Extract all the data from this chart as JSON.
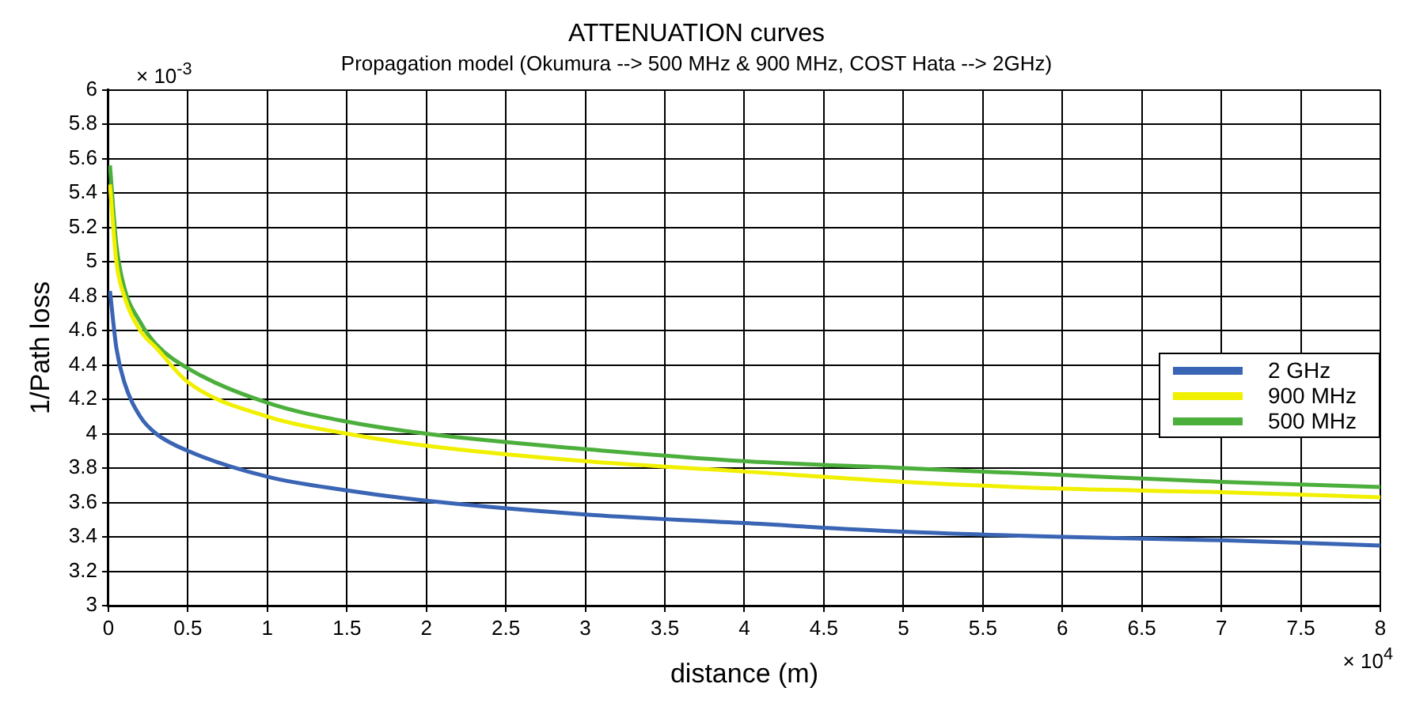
{
  "chart_data": {
    "type": "line",
    "title": "ATTENUATION curves",
    "subtitle": "Propagation model (Okumura --> 500 MHz & 900 MHz, COST Hata --> 2GHz)",
    "xlabel": "distance (m)",
    "ylabel": "1/Path loss",
    "annotations": [
      "× 10$^{-3}$",
      "× 10$^{4}$"
    ],
    "x": [
      0.01,
      0.05,
      0.1,
      0.2,
      0.3,
      0.5,
      1,
      1.5,
      2,
      3,
      4,
      5,
      6,
      7,
      8
    ],
    "series": [
      {
        "name": "2 GHz",
        "color": "#3a64b4",
        "values": [
          4.83,
          4.5,
          4.3,
          4.1,
          4.0,
          3.9,
          3.75,
          3.67,
          3.61,
          3.53,
          3.48,
          3.43,
          3.4,
          3.38,
          3.35
        ]
      },
      {
        "name": "900 MHz",
        "color": "#f0f000",
        "values": [
          5.45,
          5.0,
          4.8,
          4.6,
          4.5,
          4.3,
          4.1,
          4.0,
          3.93,
          3.84,
          3.78,
          3.72,
          3.68,
          3.66,
          3.63
        ]
      },
      {
        "name": "500 MHz",
        "color": "#4caf3c",
        "values": [
          5.56,
          5.1,
          4.85,
          4.65,
          4.52,
          4.38,
          4.18,
          4.07,
          4.0,
          3.91,
          3.84,
          3.8,
          3.76,
          3.72,
          3.69
        ]
      }
    ],
    "xlim": [
      0,
      8
    ],
    "xticks": [
      0,
      0.5,
      1,
      1.5,
      2,
      2.5,
      3,
      3.5,
      4,
      4.5,
      5,
      5.5,
      6,
      6.5,
      7,
      7.5,
      8
    ],
    "ylim": [
      3,
      6
    ],
    "yticks": [
      3,
      3.2,
      3.4,
      3.6,
      3.8,
      4,
      4.2,
      4.4,
      4.6,
      4.8,
      5,
      5.2,
      5.4,
      5.6,
      5.8,
      6
    ],
    "grid": true,
    "legend": "right",
    "line_style": "solid",
    "marker": "none"
  }
}
